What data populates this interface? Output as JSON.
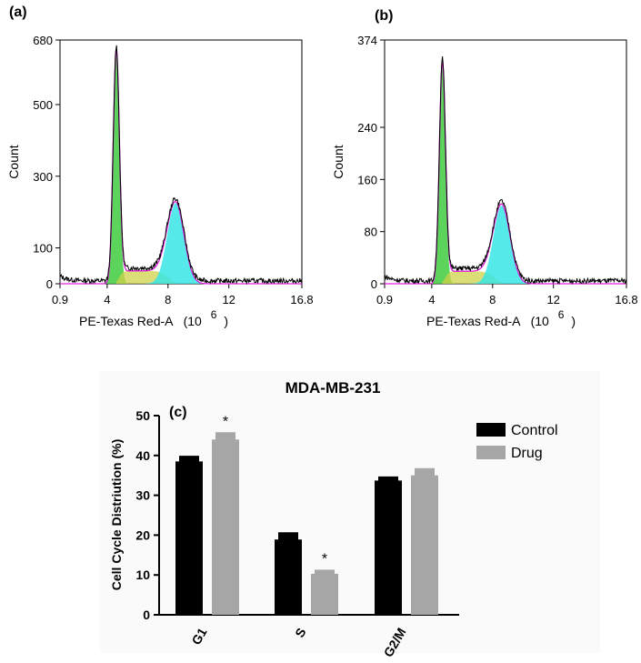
{
  "chart_data": [
    {
      "panel": "(a)",
      "type": "histogram",
      "xlabel": "PE-Texas Red-A",
      "xlabel_units": "(10",
      "xlabel_exp": "6",
      "xlabel_close": ")",
      "ylabel": "Count",
      "xlim": [
        0.9,
        16.8
      ],
      "ylim": [
        0,
        680
      ],
      "xticks": [
        0.9,
        4,
        8,
        12,
        16.8
      ],
      "xtick_labels": [
        "0.9",
        "4",
        "8",
        "12",
        "16.8"
      ],
      "yticks": [
        0,
        100,
        300,
        500,
        680
      ],
      "ytick_labels": [
        "0",
        "100",
        "300",
        "500",
        "680"
      ],
      "g1_peak": {
        "x": 4.6,
        "count": 650
      },
      "g2m_peak": {
        "x": 8.5,
        "count": 225
      },
      "colors": {
        "g1": "#3fcc3f",
        "s": "#cfd24a",
        "g2m": "#37e5e5",
        "fit": "#e020e0",
        "data": "#000000"
      }
    },
    {
      "panel": "(b)",
      "type": "histogram",
      "xlabel": "PE-Texas Red-A",
      "xlabel_units": "(10",
      "xlabel_exp": "6",
      "xlabel_close": ")",
      "ylabel": "Count",
      "xlim": [
        0.9,
        16.8
      ],
      "ylim": [
        0,
        374
      ],
      "xticks": [
        0.9,
        4,
        8,
        12,
        16.8
      ],
      "xtick_labels": [
        "0.9",
        "4",
        "8",
        "12",
        "16.8"
      ],
      "yticks": [
        0,
        80,
        160,
        240,
        374
      ],
      "ytick_labels": [
        "0",
        "80",
        "160",
        "240",
        "374"
      ],
      "g1_peak": {
        "x": 4.7,
        "count": 338
      },
      "g2m_peak": {
        "x": 8.6,
        "count": 120
      },
      "colors": {
        "g1": "#3fcc3f",
        "s": "#cfd24a",
        "g2m": "#37e5e5",
        "fit": "#e020e0",
        "data": "#000000"
      }
    },
    {
      "panel": "(c)",
      "type": "bar",
      "title": "MDA-MB-231",
      "categories": [
        "G1",
        "S",
        "G2/M"
      ],
      "series": [
        {
          "name": "Control",
          "values": [
            38.5,
            18.9,
            33.7
          ],
          "errors": [
            1.2,
            1.6,
            0.8
          ],
          "color": "#000000"
        },
        {
          "name": "Drug",
          "values": [
            44.0,
            10.3,
            35.0
          ],
          "errors": [
            1.6,
            0.8,
            1.6
          ],
          "color": "#a6a6a6"
        }
      ],
      "significance": [
        {
          "category": "G1",
          "series": "Drug",
          "label": "*"
        },
        {
          "category": "S",
          "series": "Drug",
          "label": "*"
        }
      ],
      "ylabel": "Cell Cycle Distriution (%)",
      "ylim": [
        0,
        50
      ],
      "yticks": [
        0,
        10,
        20,
        30,
        40,
        50
      ],
      "legend_position": "top-right"
    }
  ]
}
